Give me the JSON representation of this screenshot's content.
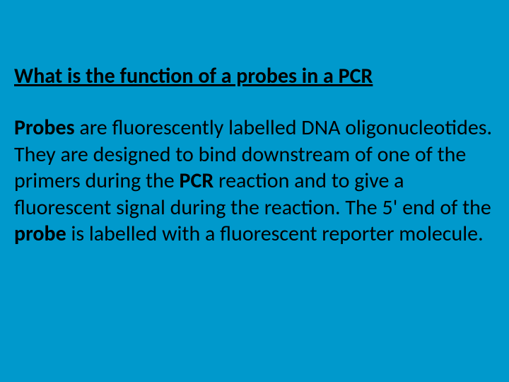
{
  "slide": {
    "background_color": "#0099cc",
    "text_color": "#000000",
    "heading": {
      "text": "What is the function of a probes in a PCR",
      "font_size": 30,
      "font_weight": "bold",
      "underline": true
    },
    "body": {
      "font_size": 30,
      "segments": [
        {
          "text": "Probes",
          "bold": true
        },
        {
          "text": " are fluorescently labelled DNA oligonucleotides. They are designed to bind downstream of one of the primers during the ",
          "bold": false
        },
        {
          "text": "PCR",
          "bold": true
        },
        {
          "text": " reaction and to give a fluorescent signal during the reaction. The 5' end of the ",
          "bold": false
        },
        {
          "text": "probe",
          "bold": true
        },
        {
          "text": " is labelled with a fluorescent reporter molecule.",
          "bold": false
        }
      ]
    }
  }
}
